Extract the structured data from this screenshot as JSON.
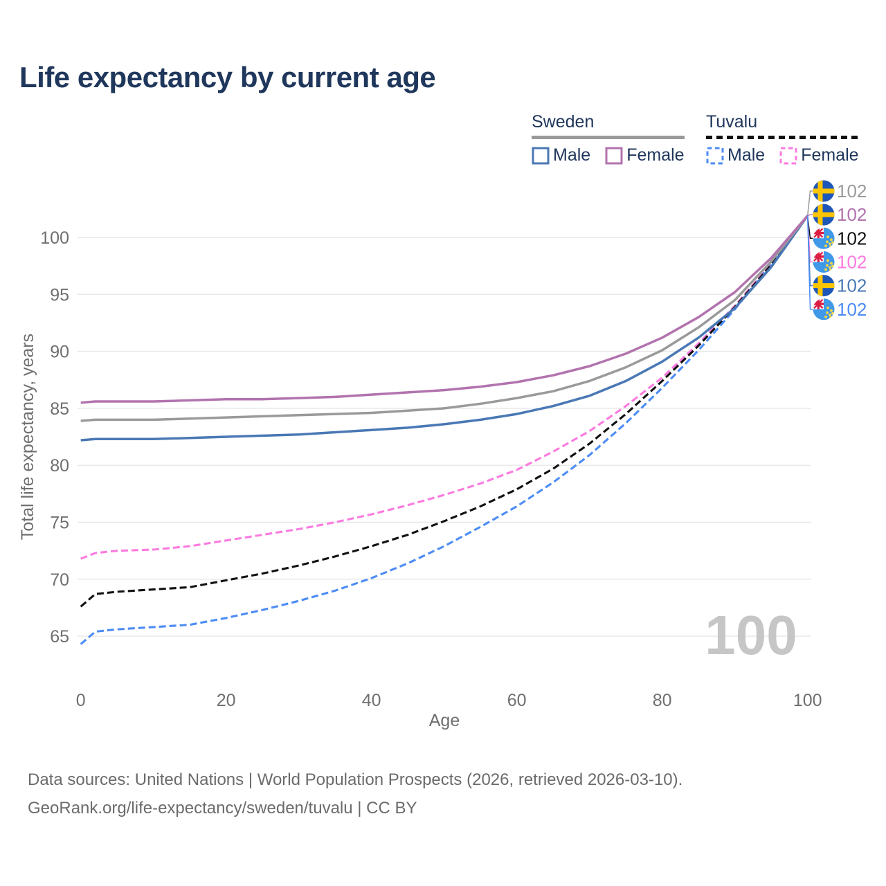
{
  "title": "Life expectancy by current age",
  "legend": {
    "groups": [
      {
        "name": "Sweden",
        "line_style": "solid",
        "items": [
          {
            "label": "Male"
          },
          {
            "label": "Female"
          }
        ]
      },
      {
        "name": "Tuvalu",
        "line_style": "dashed",
        "items": [
          {
            "label": "Male"
          },
          {
            "label": "Female"
          }
        ]
      }
    ]
  },
  "colors": {
    "title_text": "#20375c",
    "axis_text": "#6f6f6f",
    "gridline": "#e7e7e7",
    "watermark": "#c6c6c6",
    "sweden_line": "#9a9a9a",
    "sweden_male": "#4a78b5",
    "sweden_female": "#b273ae",
    "tuvalu_line": "#111111",
    "tuvalu_male": "#4d8cf5",
    "tuvalu_female": "#fb7be0"
  },
  "chart_data": {
    "type": "line",
    "xlabel": "Age",
    "ylabel": "Total life expectancy, years",
    "xticks": [
      0,
      20,
      40,
      60,
      80,
      100
    ],
    "yticks": [
      65,
      70,
      75,
      80,
      85,
      90,
      95,
      100
    ],
    "xlim": [
      0,
      100
    ],
    "ylim": [
      63,
      103.5
    ],
    "grid": "horizontal",
    "legend_position": "top-right",
    "x": [
      0,
      2,
      5,
      10,
      15,
      20,
      25,
      30,
      35,
      40,
      45,
      50,
      55,
      60,
      65,
      70,
      75,
      80,
      85,
      90,
      95,
      100
    ],
    "series": [
      {
        "name": "Sweden",
        "country": "sweden",
        "color": "#9a9a9a",
        "dashed": false,
        "values": [
          83.9,
          84.0,
          84.0,
          84.0,
          84.1,
          84.2,
          84.3,
          84.4,
          84.5,
          84.6,
          84.8,
          85.0,
          85.4,
          85.9,
          86.5,
          87.4,
          88.6,
          90.1,
          92.1,
          94.5,
          97.9,
          101.9
        ]
      },
      {
        "name": "Sweden Female",
        "country": "sweden",
        "color": "#b273ae",
        "dashed": false,
        "values": [
          85.5,
          85.6,
          85.6,
          85.6,
          85.7,
          85.8,
          85.8,
          85.9,
          86.0,
          86.2,
          86.4,
          86.6,
          86.9,
          87.3,
          87.9,
          88.7,
          89.8,
          91.2,
          93.0,
          95.2,
          98.2,
          101.9
        ]
      },
      {
        "name": "Sweden Male",
        "country": "sweden",
        "color": "#4a78b5",
        "dashed": false,
        "values": [
          82.2,
          82.3,
          82.3,
          82.3,
          82.4,
          82.5,
          82.6,
          82.7,
          82.9,
          83.1,
          83.3,
          83.6,
          84.0,
          84.5,
          85.2,
          86.1,
          87.4,
          89.1,
          91.2,
          93.8,
          97.4,
          101.9
        ]
      },
      {
        "name": "Tuvalu",
        "country": "tuvalu",
        "color": "#111111",
        "dashed": true,
        "values": [
          67.6,
          68.7,
          68.9,
          69.1,
          69.3,
          69.9,
          70.5,
          71.2,
          72.0,
          72.9,
          73.9,
          75.1,
          76.4,
          77.9,
          79.7,
          81.9,
          84.5,
          87.4,
          90.5,
          93.9,
          97.6,
          101.9
        ]
      },
      {
        "name": "Tuvalu Female",
        "country": "tuvalu",
        "color": "#fb7be0",
        "dashed": true,
        "values": [
          71.8,
          72.3,
          72.5,
          72.6,
          72.9,
          73.4,
          73.9,
          74.4,
          75.0,
          75.7,
          76.5,
          77.4,
          78.4,
          79.6,
          81.2,
          83.0,
          85.2,
          87.7,
          90.7,
          94.0,
          97.7,
          101.9
        ]
      },
      {
        "name": "Tuvalu Male",
        "country": "tuvalu",
        "color": "#4d8cf5",
        "dashed": true,
        "values": [
          64.3,
          65.4,
          65.6,
          65.8,
          66.0,
          66.6,
          67.3,
          68.1,
          69.0,
          70.1,
          71.4,
          72.9,
          74.6,
          76.4,
          78.5,
          80.9,
          83.7,
          86.8,
          90.1,
          93.7,
          97.7,
          101.9
        ]
      }
    ],
    "draw_order": [
      "Tuvalu Male",
      "Tuvalu Female",
      "Tuvalu",
      "Sweden Male",
      "Sweden",
      "Sweden Female"
    ],
    "end_labels": [
      {
        "flag": "sweden",
        "series": "Sweden",
        "value": "102",
        "color": "#9a9a9a"
      },
      {
        "flag": "sweden",
        "series": "Sweden Female",
        "value": "102",
        "color": "#b273ae"
      },
      {
        "flag": "tuvalu",
        "series": "Tuvalu",
        "value": "102",
        "color": "#111111"
      },
      {
        "flag": "tuvalu",
        "series": "Tuvalu Female",
        "value": "102",
        "color": "#fb7be0"
      },
      {
        "flag": "sweden",
        "series": "Sweden Male",
        "value": "102",
        "color": "#4a78b5"
      },
      {
        "flag": "tuvalu",
        "series": "Tuvalu Male",
        "value": "102",
        "color": "#4d8cf5"
      }
    ]
  },
  "watermark": "100",
  "footer": {
    "line1": "Data sources: United Nations | World Population Prospects (2026, retrieved 2026-03-10).",
    "line2": "GeoRank.org/life-expectancy/sweden/tuvalu | CC BY"
  }
}
